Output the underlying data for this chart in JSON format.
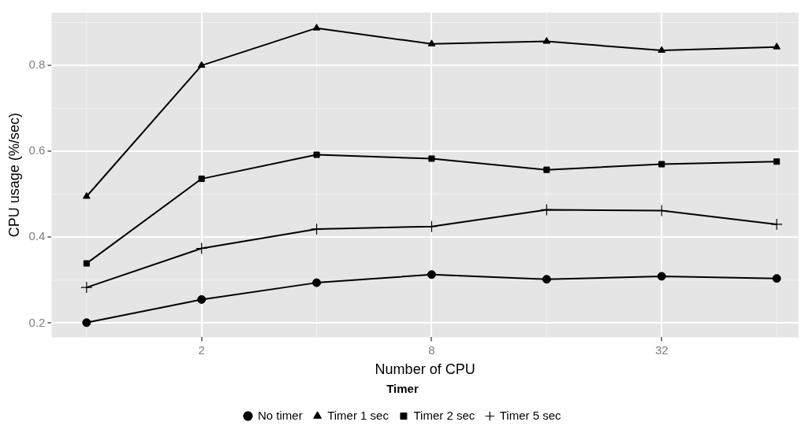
{
  "chart_data": {
    "type": "line",
    "xlabel": "Number of CPU",
    "ylabel": "CPU usage (%/sec)",
    "legend_title": "Timer",
    "legend": "bottom",
    "grid": true,
    "log": "x",
    "x": [
      1,
      2,
      4,
      8,
      16,
      32,
      64
    ],
    "xlim": [
      0.81,
      73
    ],
    "xticks": [
      2,
      8,
      32
    ],
    "ylim": [
      0.167,
      0.923
    ],
    "yticks": [
      0.2,
      0.4,
      0.6,
      0.8
    ],
    "series": [
      {
        "name": "No timer",
        "color": "#000000",
        "marker": "circle",
        "values": [
          0.201,
          0.255,
          0.294,
          0.313,
          0.302,
          0.309,
          0.304
        ]
      },
      {
        "name": "Timer 1 sec",
        "color": "#000000",
        "marker": "triangle",
        "values": [
          0.495,
          0.8,
          0.887,
          0.85,
          0.856,
          0.835,
          0.843
        ]
      },
      {
        "name": "Timer 2 sec",
        "color": "#000000",
        "marker": "square",
        "values": [
          0.339,
          0.536,
          0.592,
          0.583,
          0.557,
          0.57,
          0.576
        ]
      },
      {
        "name": "Timer 5 sec",
        "color": "#000000",
        "marker": "cross",
        "values": [
          0.283,
          0.374,
          0.419,
          0.425,
          0.464,
          0.462,
          0.43
        ]
      }
    ]
  }
}
